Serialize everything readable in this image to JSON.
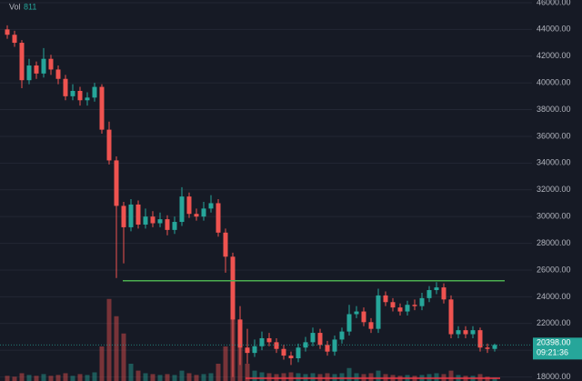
{
  "chart_data": {
    "type": "candlestick",
    "volume_legend": {
      "label": "Vol",
      "value": 811
    },
    "open": [
      44000,
      43600,
      43000,
      40200,
      41300,
      40700,
      41800,
      41000,
      40300,
      39000,
      39400,
      38700,
      38900,
      39700,
      36500,
      34200,
      30800,
      29200,
      30900,
      29400,
      30000,
      29500,
      29800,
      29000,
      29600,
      31500,
      30200,
      30000,
      30600,
      31000,
      28800,
      27000,
      22300,
      20200,
      19800,
      20300,
      20900,
      20600,
      20100,
      19600,
      19400,
      20200,
      20600,
      21300,
      20400,
      19900,
      20800,
      21400,
      22700,
      22900,
      22100,
      21600,
      24100,
      23600,
      23200,
      22900,
      23400,
      23300,
      23900,
      24500,
      24700,
      23800,
      21200,
      21500,
      21200,
      21500,
      20200,
      20100
    ],
    "high": [
      44300,
      43900,
      43200,
      41800,
      41600,
      42600,
      42100,
      41300,
      40600,
      39900,
      39700,
      39300,
      40000,
      39900,
      37100,
      34500,
      31100,
      31300,
      31200,
      30600,
      30400,
      30300,
      30100,
      30000,
      32200,
      31800,
      30600,
      31100,
      31600,
      31300,
      29100,
      27300,
      23300,
      21600,
      20800,
      21400,
      21300,
      20900,
      20400,
      19900,
      20500,
      21000,
      21700,
      21600,
      20700,
      21100,
      21700,
      23400,
      23300,
      23200,
      22400,
      24600,
      24400,
      23900,
      23500,
      23700,
      23800,
      24300,
      24800,
      25100,
      25000,
      24100,
      21800,
      21800,
      21800,
      21700,
      20500,
      20500
    ],
    "low": [
      43300,
      42700,
      39600,
      39900,
      40300,
      40400,
      40600,
      39900,
      38700,
      38700,
      38300,
      38300,
      38600,
      36200,
      33900,
      25400,
      26500,
      28900,
      29100,
      29100,
      29200,
      29200,
      28600,
      28700,
      29300,
      29900,
      29700,
      29700,
      30300,
      28500,
      25800,
      18000,
      18900,
      19000,
      19500,
      20000,
      20300,
      19800,
      19300,
      18900,
      19100,
      19900,
      20300,
      20100,
      19600,
      19600,
      20500,
      21100,
      22400,
      21800,
      21300,
      21300,
      23300,
      22900,
      22600,
      22600,
      23000,
      23000,
      23600,
      24200,
      23500,
      20900,
      20900,
      20900,
      20900,
      19900,
      19800,
      19900
    ],
    "close": [
      43600,
      43000,
      40200,
      41300,
      40700,
      41800,
      41000,
      40300,
      39000,
      39400,
      38700,
      38900,
      39700,
      36500,
      34200,
      30800,
      29200,
      30900,
      29400,
      30000,
      29500,
      29800,
      29000,
      29600,
      31500,
      30200,
      30000,
      30600,
      31000,
      28800,
      27000,
      22300,
      20200,
      19800,
      20300,
      20900,
      20600,
      20100,
      19600,
      19400,
      20200,
      20600,
      21300,
      20400,
      19900,
      20800,
      21400,
      22700,
      22900,
      22100,
      21600,
      24100,
      23600,
      23200,
      22900,
      23400,
      23300,
      23900,
      24500,
      24700,
      23800,
      21200,
      21500,
      21200,
      21500,
      20200,
      20100,
      20398
    ],
    "volume": [
      6,
      5,
      9,
      7,
      6,
      8,
      6,
      7,
      9,
      6,
      8,
      7,
      10,
      40,
      95,
      75,
      55,
      20,
      12,
      9,
      8,
      7,
      8,
      7,
      12,
      9,
      7,
      8,
      9,
      20,
      40,
      100,
      60,
      20,
      12,
      10,
      9,
      8,
      9,
      10,
      9,
      8,
      9,
      8,
      9,
      8,
      9,
      15,
      9,
      8,
      9,
      12,
      8,
      7,
      6,
      7,
      6,
      7,
      8,
      9,
      8,
      12,
      7,
      6,
      6,
      8,
      5,
      4
    ],
    "up_color": "#26a69a",
    "down_color": "#ef5350",
    "ylim": [
      17700,
      46200
    ],
    "yticks": [
      {
        "value": 18000,
        "label": "18000.00"
      },
      {
        "value": 20000,
        "label": "20000.00"
      },
      {
        "value": 22000,
        "label": "22000.00"
      },
      {
        "value": 24000,
        "label": "24000.00"
      },
      {
        "value": 26000,
        "label": "26000.00"
      },
      {
        "value": 28000,
        "label": "28000.00"
      },
      {
        "value": 30000,
        "label": "30000.00"
      },
      {
        "value": 32000,
        "label": "32000.00"
      },
      {
        "value": 34000,
        "label": "34000.00"
      },
      {
        "value": 36000,
        "label": "36000.00"
      },
      {
        "value": 38000,
        "label": "38000.00"
      },
      {
        "value": 40000,
        "label": "40000.00"
      },
      {
        "value": 42000,
        "label": "42000.00"
      },
      {
        "value": 44000,
        "label": "44000.00"
      },
      {
        "value": 46000,
        "label": "46000.00"
      }
    ],
    "grid": true,
    "lines": [
      {
        "value": 25200,
        "color": "#4caf50"
      },
      {
        "value": 17900,
        "color": "#f23645"
      }
    ],
    "last_price": {
      "value": 20398,
      "label": "20398.00"
    },
    "countdown": "09:21:36"
  }
}
